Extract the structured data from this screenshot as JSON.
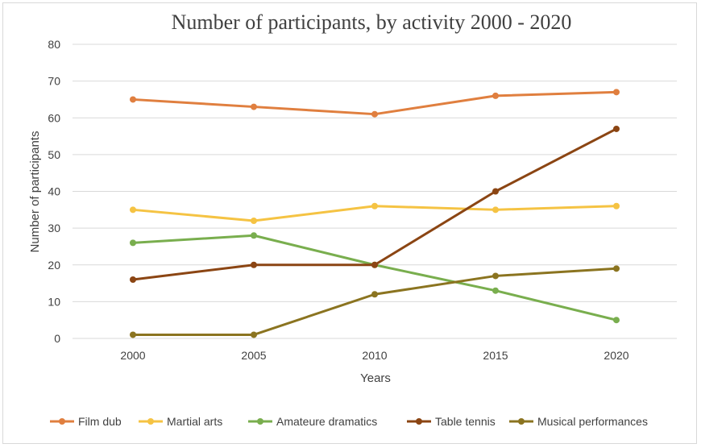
{
  "chart_data": {
    "type": "line",
    "title": "Number of participants, by activity 2000 - 2020",
    "xlabel": "Years",
    "ylabel": "Number of participants",
    "x": [
      "2000",
      "2005",
      "2010",
      "2015",
      "2020"
    ],
    "ylim": [
      0,
      80
    ],
    "yticks": [
      0,
      10,
      20,
      30,
      40,
      50,
      60,
      70,
      80
    ],
    "grid": true,
    "legend_position": "bottom",
    "series": [
      {
        "name": "Film dub",
        "color": "#e07f3f",
        "values": [
          65,
          63,
          61,
          66,
          67
        ]
      },
      {
        "name": "Martial arts",
        "color": "#f5c343",
        "values": [
          35,
          32,
          36,
          35,
          36
        ]
      },
      {
        "name": "Amateure dramatics",
        "color": "#79ae4e",
        "values": [
          26,
          28,
          20,
          13,
          5
        ]
      },
      {
        "name": "Table tennis",
        "color": "#8b4513",
        "values": [
          16,
          20,
          20,
          40,
          57
        ]
      },
      {
        "name": "Musical performances",
        "color": "#8b7420",
        "values": [
          1,
          1,
          12,
          17,
          19
        ]
      }
    ]
  }
}
